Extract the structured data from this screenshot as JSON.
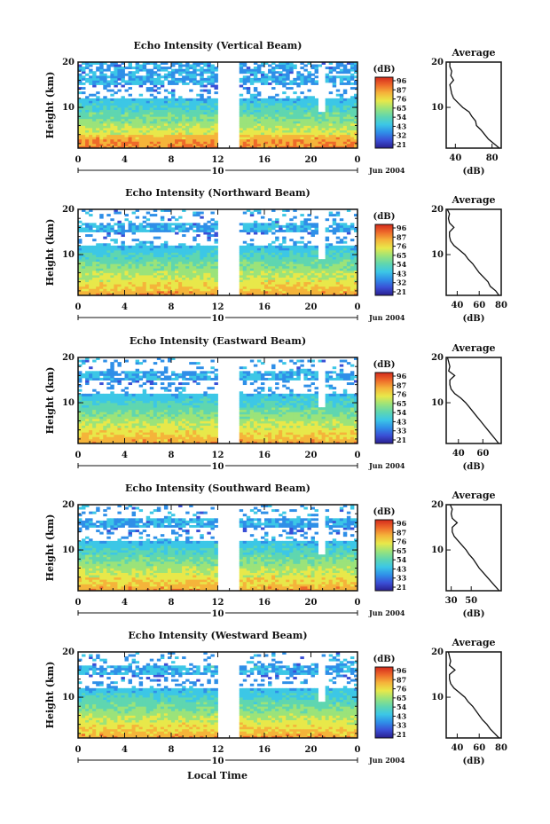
{
  "colors": {
    "colormap": [
      "#2a1f8f",
      "#3a4fd6",
      "#2f8fe8",
      "#3cc7e6",
      "#5fd6b0",
      "#9be37a",
      "#e8e84a",
      "#f5b43a",
      "#ee6a2a",
      "#d42a1c"
    ],
    "line": "#111111"
  },
  "shared_labels": {
    "xlabel": "Local Time",
    "date": "Jun 2004",
    "day_label": "10",
    "avg_title": "Average",
    "avg_xlabel": "(dB)",
    "cbar_title": "(dB)",
    "ylabel": "Height (km)"
  },
  "chart_data": [
    {
      "type": "heatmap",
      "title": "Echo Intensity (Vertical Beam)",
      "xlabel": "",
      "ylabel": "Height (km)",
      "xlim": [
        0,
        24
      ],
      "ylim": [
        1,
        20
      ],
      "x_ticks": [
        "0",
        "4",
        "8",
        "12",
        "16",
        "20",
        "0"
      ],
      "y_ticks": [
        "10",
        "20"
      ],
      "data_gap_hours": [
        12,
        14
      ],
      "colorbar": {
        "label": "(dB)",
        "ticks": [
          "96",
          "87",
          "76",
          "65",
          "54",
          "43",
          "32",
          "21"
        ]
      },
      "profile": {
        "title": "Average",
        "xlabel": "(dB)",
        "x_ticks": [
          "40",
          "80"
        ],
        "xlim": [
          30,
          90
        ],
        "heights": [
          1,
          2,
          3,
          4,
          5,
          6,
          7,
          8,
          9,
          10,
          11,
          12,
          13,
          14,
          15,
          16,
          17,
          18,
          19,
          20
        ],
        "values": [
          88,
          82,
          76,
          72,
          68,
          63,
          62,
          58,
          55,
          48,
          43,
          38,
          36,
          35,
          34,
          38,
          35,
          36,
          34,
          34
        ]
      }
    },
    {
      "type": "heatmap",
      "title": "Echo Intensity (Northward Beam)",
      "xlabel": "",
      "ylabel": "Height (km)",
      "xlim": [
        0,
        24
      ],
      "ylim": [
        1,
        20
      ],
      "x_ticks": [
        "0",
        "4",
        "8",
        "12",
        "16",
        "20",
        "0"
      ],
      "y_ticks": [
        "10",
        "20"
      ],
      "data_gap_hours": [
        12,
        14
      ],
      "colorbar": {
        "label": "(dB)",
        "ticks": [
          "96",
          "87",
          "76",
          "65",
          "54",
          "43",
          "32",
          "21"
        ]
      },
      "profile": {
        "title": "Average",
        "xlabel": "(dB)",
        "x_ticks": [
          "40",
          "60",
          "80"
        ],
        "xlim": [
          30,
          80
        ],
        "heights": [
          1,
          2,
          3,
          4,
          5,
          6,
          7,
          8,
          9,
          10,
          11,
          12,
          13,
          14,
          15,
          16,
          17,
          18,
          19,
          20
        ],
        "values": [
          78,
          75,
          70,
          68,
          64,
          60,
          57,
          54,
          50,
          47,
          42,
          37,
          34,
          33,
          33,
          37,
          33,
          32,
          33,
          31
        ]
      }
    },
    {
      "type": "heatmap",
      "title": "Echo Intensity (Eastward Beam)",
      "xlabel": "",
      "ylabel": "Height (km)",
      "xlim": [
        0,
        24
      ],
      "ylim": [
        1,
        20
      ],
      "x_ticks": [
        "0",
        "4",
        "8",
        "12",
        "16",
        "20",
        "0"
      ],
      "y_ticks": [
        "10",
        "20"
      ],
      "data_gap_hours": [
        12,
        14
      ],
      "colorbar": {
        "label": "(dB)",
        "ticks": [
          "96",
          "87",
          "76",
          "65",
          "54",
          "43",
          "33",
          "21"
        ]
      },
      "profile": {
        "title": "Average",
        "xlabel": "(dB)",
        "x_ticks": [
          "40",
          "60"
        ],
        "xlim": [
          30,
          75
        ],
        "heights": [
          1,
          2,
          3,
          4,
          5,
          6,
          7,
          8,
          9,
          10,
          11,
          12,
          13,
          14,
          15,
          16,
          17,
          18,
          19,
          20
        ],
        "values": [
          73,
          70,
          67,
          64,
          61,
          58,
          55,
          52,
          49,
          46,
          42,
          37,
          34,
          33,
          33,
          37,
          32,
          33,
          32,
          31
        ]
      }
    },
    {
      "type": "heatmap",
      "title": "Echo Intensity (Southward Beam)",
      "xlabel": "",
      "ylabel": "Height (km)",
      "xlim": [
        0,
        24
      ],
      "ylim": [
        1,
        20
      ],
      "x_ticks": [
        "0",
        "4",
        "8",
        "12",
        "16",
        "20",
        "0"
      ],
      "y_ticks": [
        "10",
        "20"
      ],
      "data_gap_hours": [
        12,
        14
      ],
      "colorbar": {
        "label": "(dB)",
        "ticks": [
          "96",
          "87",
          "76",
          "65",
          "54",
          "43",
          "33",
          "21"
        ]
      },
      "profile": {
        "title": "Average",
        "xlabel": "(dB)",
        "x_ticks": [
          "30",
          "50"
        ],
        "xlim": [
          25,
          80
        ],
        "heights": [
          1,
          2,
          3,
          4,
          5,
          6,
          7,
          8,
          9,
          10,
          11,
          12,
          13,
          14,
          15,
          16,
          17,
          18,
          19,
          20
        ],
        "values": [
          78,
          74,
          70,
          66,
          62,
          58,
          55,
          52,
          48,
          45,
          41,
          37,
          33,
          31,
          31,
          36,
          31,
          30,
          31,
          29
        ]
      }
    },
    {
      "type": "heatmap",
      "title": "Echo Intensity (Westward Beam)",
      "xlabel": "Local Time",
      "ylabel": "Height (km)",
      "xlim": [
        0,
        24
      ],
      "ylim": [
        1,
        20
      ],
      "x_ticks": [
        "0",
        "4",
        "8",
        "12",
        "16",
        "20",
        "0"
      ],
      "y_ticks": [
        "10",
        "20"
      ],
      "data_gap_hours": [
        12,
        14
      ],
      "colorbar": {
        "label": "(dB)",
        "ticks": [
          "96",
          "87",
          "76",
          "65",
          "54",
          "43",
          "33",
          "21"
        ]
      },
      "profile": {
        "title": "Average",
        "xlabel": "(dB)",
        "x_ticks": [
          "40",
          "60",
          "80"
        ],
        "xlim": [
          30,
          80
        ],
        "heights": [
          1,
          2,
          3,
          4,
          5,
          6,
          7,
          8,
          9,
          10,
          11,
          12,
          13,
          14,
          15,
          16,
          17,
          18,
          19,
          20
        ],
        "values": [
          78,
          74,
          70,
          67,
          63,
          60,
          57,
          54,
          50,
          47,
          42,
          37,
          34,
          33,
          33,
          38,
          33,
          34,
          33,
          32
        ]
      }
    }
  ]
}
